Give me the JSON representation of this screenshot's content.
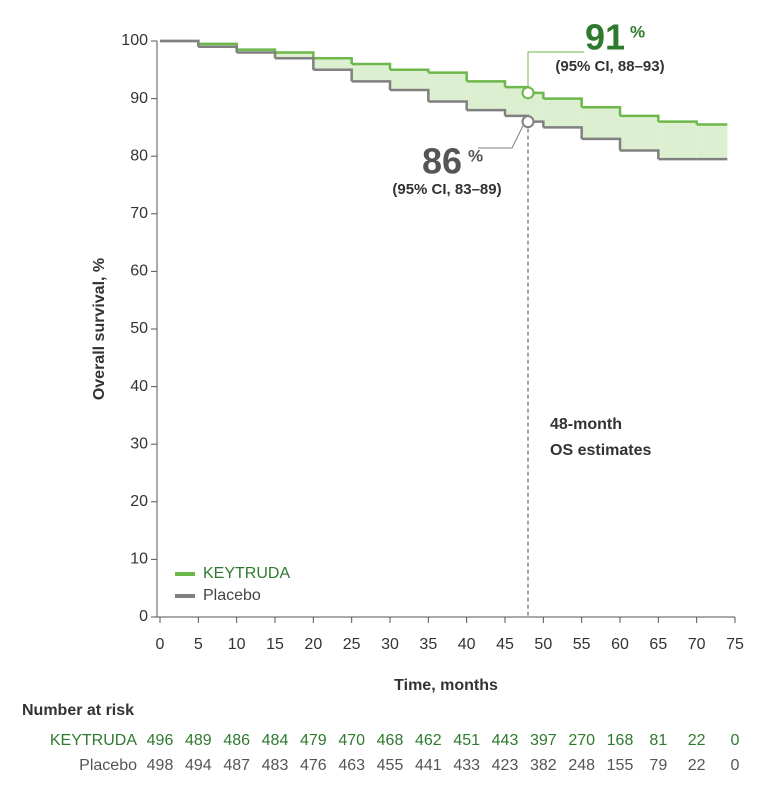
{
  "chart_data": {
    "type": "step",
    "x_label": "Time, months",
    "y_label": "Overall survival, %",
    "x": [
      0,
      5,
      10,
      15,
      20,
      25,
      30,
      35,
      40,
      45,
      48,
      50,
      55,
      60,
      65,
      70,
      74
    ],
    "series": [
      {
        "name": "KEYTRUDA",
        "color": "#6cb84a",
        "values": [
          100,
          99.5,
          98.5,
          98,
          97,
          96,
          95,
          94.5,
          93,
          92,
          91,
          90,
          88.5,
          87,
          86,
          85.5,
          85.5
        ]
      },
      {
        "name": "Placebo",
        "color": "#808080",
        "values": [
          100,
          99,
          98,
          97,
          95,
          93,
          91.5,
          89.5,
          88,
          87,
          86,
          85,
          83,
          81,
          79.5,
          79.5,
          79.5
        ]
      }
    ],
    "fill_between_color": "#dcefd0",
    "xlim": [
      0,
      75
    ],
    "xticks": [
      0,
      5,
      10,
      15,
      20,
      25,
      30,
      35,
      40,
      45,
      50,
      55,
      60,
      65,
      70,
      75
    ],
    "ylim": [
      0,
      100
    ],
    "yticks": [
      0,
      10,
      20,
      30,
      40,
      50,
      60,
      70,
      80,
      90,
      100
    ],
    "legend": "lower left",
    "reference_x": 48,
    "reference_label": [
      "48-month",
      "OS estimates"
    ],
    "annotations": [
      {
        "x": 48,
        "value": 91,
        "label": "91",
        "unit": "%",
        "ci": "(95% CI, 88–93)",
        "color": "#2e7a2e"
      },
      {
        "x": 48,
        "value": 86,
        "label": "86",
        "unit": "%",
        "ci": "(95% CI, 83–89)",
        "color": "#555555"
      }
    ],
    "risk_table": {
      "title": "Number at risk",
      "rows": [
        {
          "name": "KEYTRUDA",
          "color": "#2e7a2e",
          "values": [
            "496",
            "489",
            "486",
            "484",
            "479",
            "470",
            "468",
            "462",
            "451",
            "443",
            "397",
            "270",
            "168",
            "81",
            "22",
            "0"
          ]
        },
        {
          "name": "Placebo",
          "color": "#555555",
          "values": [
            "498",
            "494",
            "487",
            "483",
            "476",
            "463",
            "455",
            "441",
            "433",
            "423",
            "382",
            "248",
            "155",
            "79",
            "22",
            "0"
          ]
        }
      ]
    }
  }
}
